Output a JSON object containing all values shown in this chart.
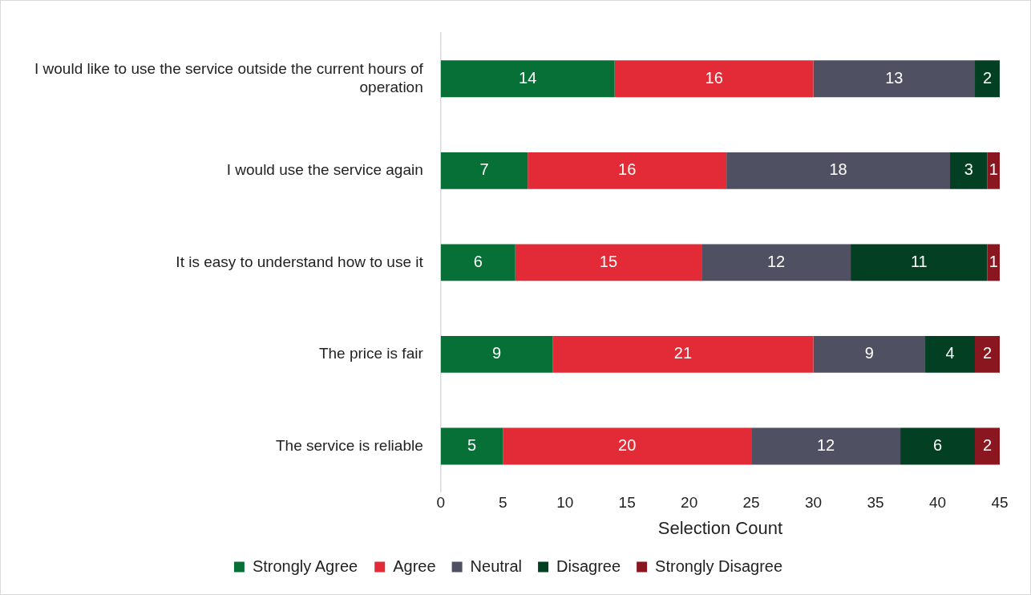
{
  "chart_data": {
    "type": "bar",
    "orientation": "horizontal",
    "stacked": true,
    "categories": [
      "I would like to use the service outside the current hours of operation",
      "I would use the service again",
      "It is easy to understand how to use it",
      "The price is fair",
      "The service is reliable"
    ],
    "series": [
      {
        "name": "Strongly Agree",
        "color": "#077036",
        "values": [
          14,
          7,
          6,
          9,
          5
        ]
      },
      {
        "name": "Agree",
        "color": "#e22b36",
        "values": [
          16,
          16,
          15,
          21,
          20
        ]
      },
      {
        "name": "Neutral",
        "color": "#4f5061",
        "values": [
          13,
          18,
          12,
          9,
          12
        ]
      },
      {
        "name": "Disagree",
        "color": "#033f22",
        "values": [
          2,
          3,
          11,
          4,
          6
        ]
      },
      {
        "name": "Strongly Disagree",
        "color": "#8a1620",
        "values": [
          null,
          1,
          1,
          2,
          2
        ]
      }
    ],
    "xlabel": "Selection Count",
    "xlim": [
      0,
      45
    ],
    "xticks": [
      0,
      5,
      10,
      15,
      20,
      25,
      30,
      35,
      40,
      45
    ],
    "grid": false,
    "legend": "bottom",
    "data_labels": true
  }
}
